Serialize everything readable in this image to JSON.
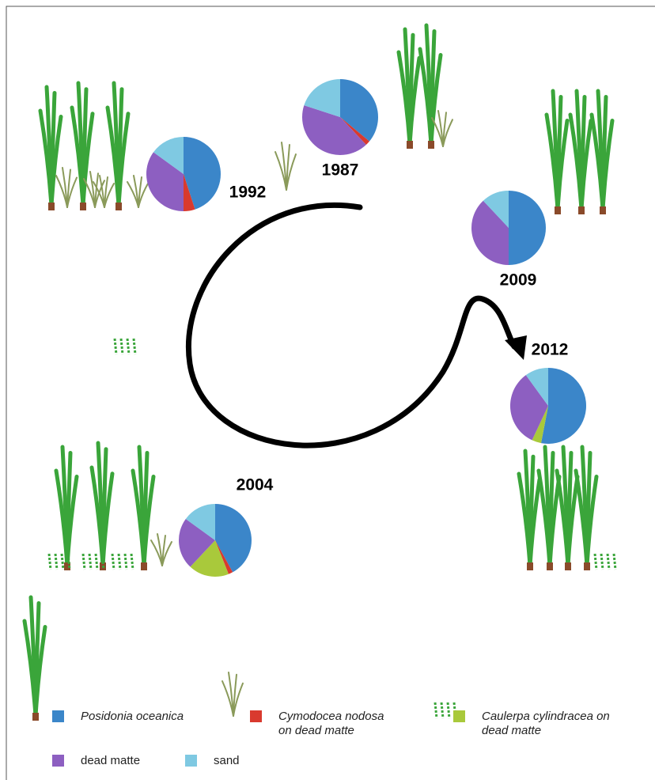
{
  "chart_data": [
    {
      "type": "pie",
      "title": "1987",
      "categories": [
        "Posidonia oceanica",
        "Cymodocea nodosa on dead matte",
        "Caulerpa cylindracea on dead matte",
        "dead matte",
        "sand"
      ],
      "colors": [
        "#3b86c9",
        "#d93a2e",
        "#a9c93b",
        "#8d5fc1",
        "#7fc9e2"
      ],
      "values": [
        36,
        2,
        0,
        42,
        20
      ]
    },
    {
      "type": "pie",
      "title": "1992",
      "categories": [
        "Posidonia oceanica",
        "Cymodocea nodosa on dead matte",
        "Caulerpa cylindracea on dead matte",
        "dead matte",
        "sand"
      ],
      "colors": [
        "#3b86c9",
        "#d93a2e",
        "#a9c93b",
        "#8d5fc1",
        "#7fc9e2"
      ],
      "values": [
        45,
        5,
        0,
        35,
        15
      ]
    },
    {
      "type": "pie",
      "title": "2009",
      "categories": [
        "Posidonia oceanica",
        "Cymodocea nodosa on dead matte",
        "Caulerpa cylindracea on dead matte",
        "dead matte",
        "sand"
      ],
      "colors": [
        "#3b86c9",
        "#d93a2e",
        "#a9c93b",
        "#8d5fc1",
        "#7fc9e2"
      ],
      "values": [
        50,
        0,
        0,
        38,
        12
      ]
    },
    {
      "type": "pie",
      "title": "2012",
      "categories": [
        "Posidonia oceanica",
        "Cymodocea nodosa on dead matte",
        "Caulerpa cylindracea on dead matte",
        "dead matte",
        "sand"
      ],
      "colors": [
        "#3b86c9",
        "#d93a2e",
        "#a9c93b",
        "#8d5fc1",
        "#7fc9e2"
      ],
      "values": [
        53,
        0,
        4,
        33,
        10
      ]
    },
    {
      "type": "pie",
      "title": "2004",
      "categories": [
        "Posidonia oceanica",
        "Cymodocea nodosa on dead matte",
        "Caulerpa cylindracea on dead matte",
        "dead matte",
        "sand"
      ],
      "colors": [
        "#3b86c9",
        "#d93a2e",
        "#a9c93b",
        "#8d5fc1",
        "#7fc9e2"
      ],
      "values": [
        42,
        2,
        18,
        23,
        15
      ]
    }
  ]
}
